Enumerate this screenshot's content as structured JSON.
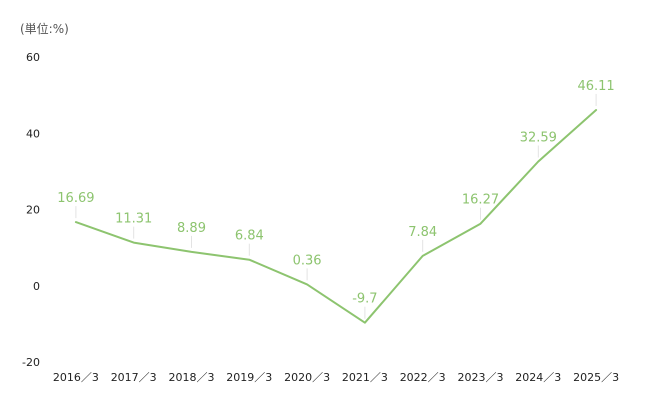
{
  "chart_data": {
    "type": "line",
    "unit_label": "(単位:%)",
    "categories": [
      "2016／3",
      "2017／3",
      "2018／3",
      "2019／3",
      "2020／3",
      "2021／3",
      "2022／3",
      "2023／3",
      "2024／3",
      "2025／3"
    ],
    "series": [
      {
        "values": [
          16.69,
          11.31,
          8.89,
          6.84,
          0.36,
          -9.7,
          7.84,
          16.27,
          32.59,
          46.11
        ],
        "labels": [
          "16.69",
          "11.31",
          "8.89",
          "6.84",
          "0.36",
          "-9.7",
          "7.84",
          "16.27",
          "32.59",
          "46.11"
        ],
        "color": "#8dc46f"
      }
    ],
    "ylim": [
      -20,
      60
    ],
    "yticks": [
      60,
      40,
      20,
      0,
      -20
    ],
    "grid": false,
    "legend": "none"
  }
}
